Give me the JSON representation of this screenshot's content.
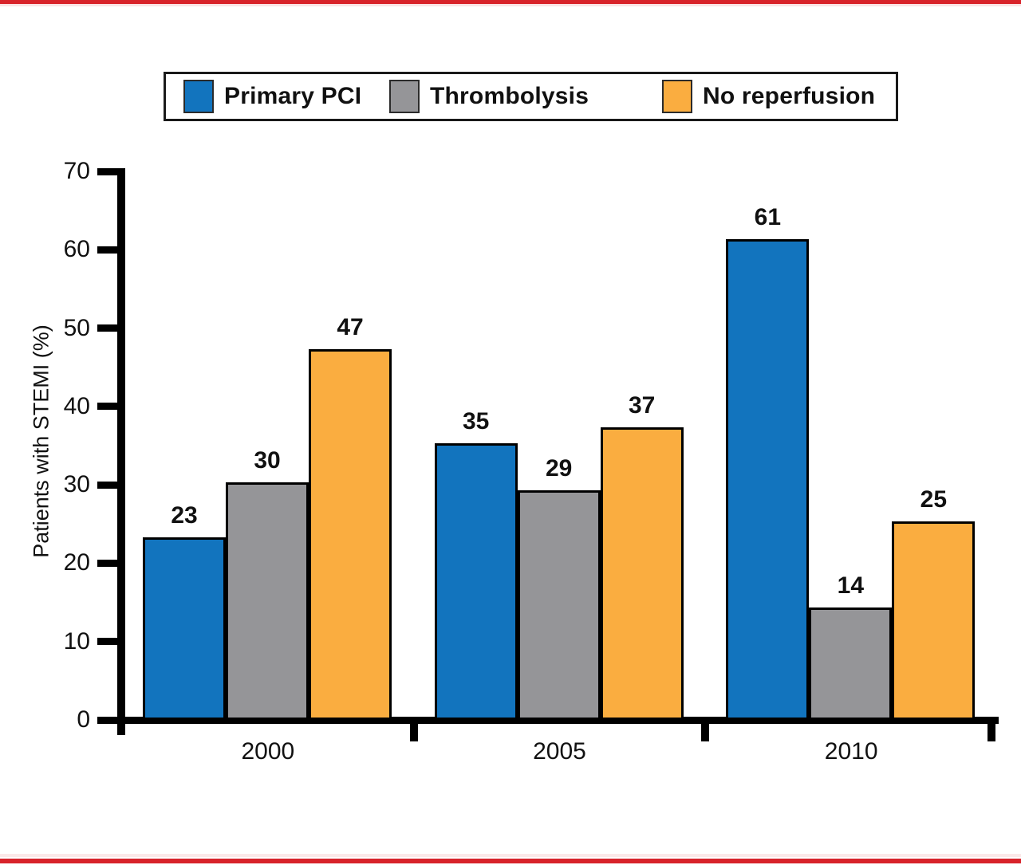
{
  "page": {
    "accent_red": "#D8232A"
  },
  "chart_data": {
    "type": "bar",
    "title": "",
    "categories": [
      "2000",
      "2005",
      "2010"
    ],
    "series": [
      {
        "name": "Primary PCI",
        "color": "#1274BE",
        "values": [
          23,
          35,
          61
        ]
      },
      {
        "name": "Thrombolysis",
        "color": "#959598",
        "values": [
          30,
          29,
          14
        ]
      },
      {
        "name": "No reperfusion",
        "color": "#FAAD40",
        "values": [
          47,
          37,
          25
        ]
      }
    ],
    "xlabel": "",
    "ylabel": "Patients with STEMI (%)",
    "ylim": [
      0,
      70
    ],
    "yticks": [
      0,
      10,
      20,
      30,
      40,
      50,
      60,
      70
    ],
    "grid": false,
    "legend_position": "top",
    "value_labels": true,
    "bar_outline": "#000000"
  }
}
